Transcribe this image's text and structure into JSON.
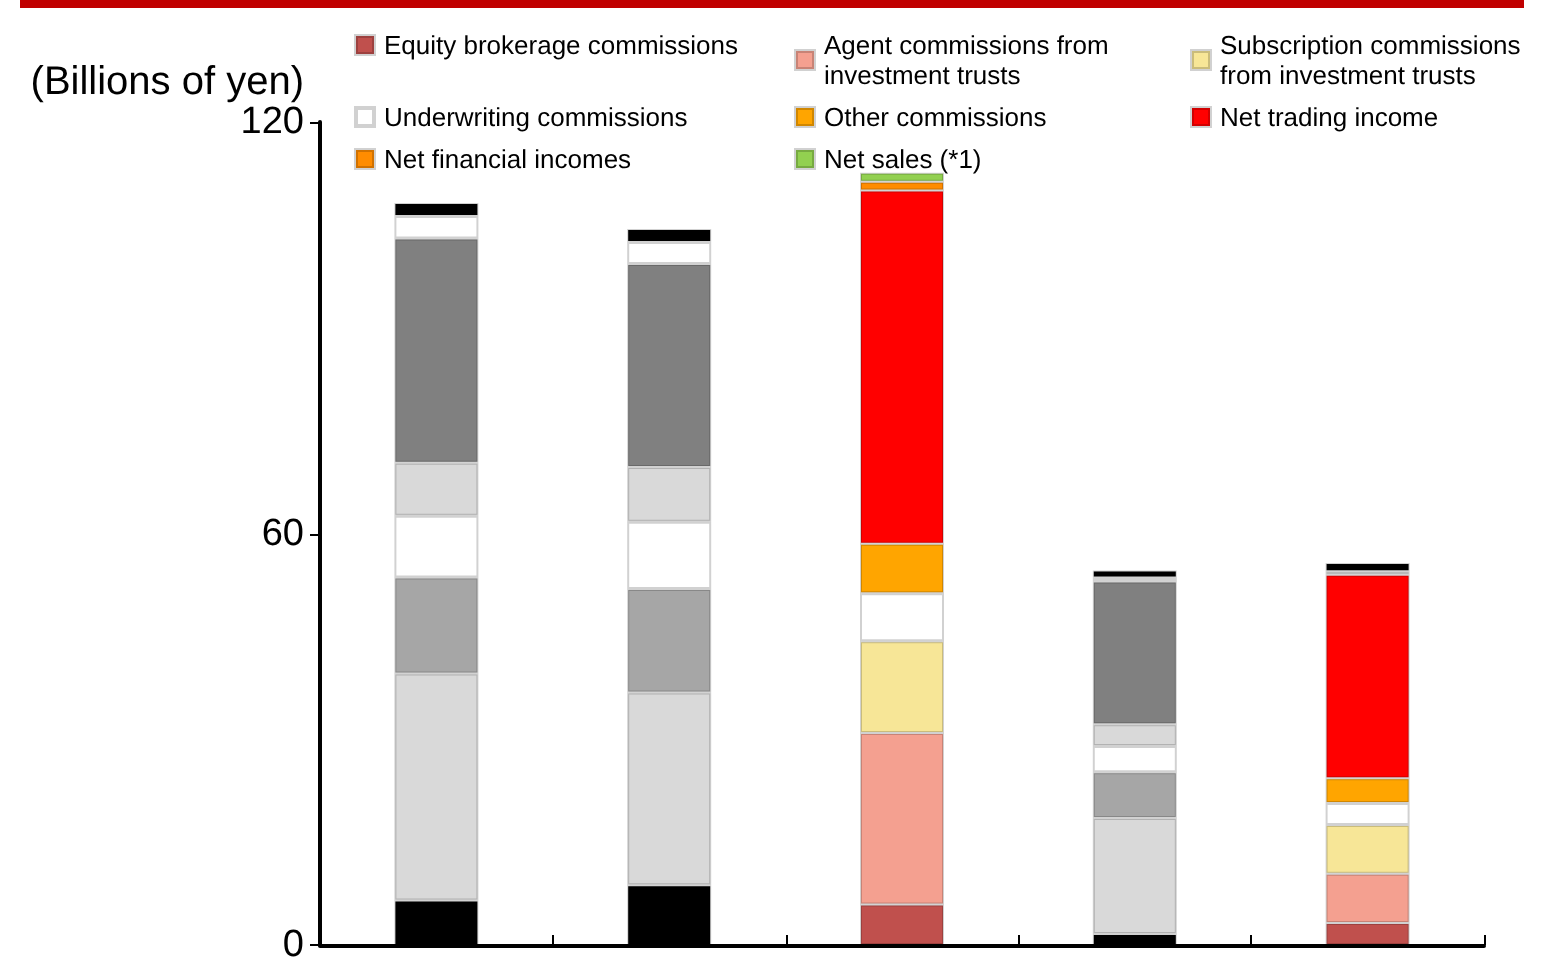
{
  "chart_data": {
    "type": "bar",
    "stacked": true,
    "ylabel": "(Billions of yen)",
    "legend": "top",
    "categories": [
      null,
      null,
      null,
      null,
      null
    ],
    "ylim": [
      0,
      120
    ],
    "yticks": [
      0,
      60,
      120
    ],
    "series": [
      {
        "name": "Equity brokerage commissions",
        "color": "#c0504d",
        "colors": [
          "#000000",
          "#000000",
          "#c0504d",
          "#000000",
          "#c0504d"
        ],
        "values": [
          6.5,
          8.7,
          5.9,
          1.6,
          3.2
        ]
      },
      {
        "name": "Agent commissions from investment trusts",
        "color": "#f4a090",
        "colors": [
          "#d9d9d9",
          "#d9d9d9",
          "#f4a090",
          "#d9d9d9",
          "#f4a090"
        ],
        "values": [
          33.1,
          28.1,
          25.0,
          16.9,
          7.2
        ]
      },
      {
        "name": "Subscription commissions from investment trusts",
        "color": "#f7e697",
        "colors": [
          "#a6a6a6",
          "#a6a6a6",
          "#f7e697",
          "#a6a6a6",
          "#f7e697"
        ],
        "values": [
          14.0,
          15.1,
          13.4,
          6.7,
          7.1
        ]
      },
      {
        "name": "Underwriting commissions",
        "color": "#ffffff",
        "colors": [
          "#ffffff",
          "#ffffff",
          "#ffffff",
          "#ffffff",
          "#ffffff"
        ],
        "values": [
          9.0,
          9.8,
          7.0,
          3.8,
          3.2
        ]
      },
      {
        "name": "Other commissions",
        "color": "#ffa500",
        "colors": [
          "#d9d9d9",
          "#d9d9d9",
          "#ffa500",
          "#d9d9d9",
          "#ffa500"
        ],
        "values": [
          7.7,
          8.0,
          7.2,
          3.2,
          3.6
        ]
      },
      {
        "name": "Net trading income",
        "color": "#ff0000",
        "colors": [
          "#808080",
          "#808080",
          "#ff0000",
          "#808080",
          "#ff0000"
        ],
        "values": [
          32.7,
          29.6,
          51.5,
          20.8,
          29.7
        ]
      },
      {
        "name": "Net financial incomes",
        "color": "#ff8c00",
        "colors": [
          "#ffffff",
          "#ffffff",
          "#ff8c00",
          "#ffffff",
          "#d9d9d9"
        ],
        "values": [
          3.3,
          3.2,
          1.3,
          0.6,
          0.5
        ]
      },
      {
        "name": "Net sales (*1)",
        "color": "#92d050",
        "colors": [
          "#000000",
          "#000000",
          "#92d050",
          "#000000",
          "#000000"
        ],
        "values": [
          1.9,
          1.9,
          1.3,
          1.0,
          1.2
        ]
      }
    ]
  }
}
